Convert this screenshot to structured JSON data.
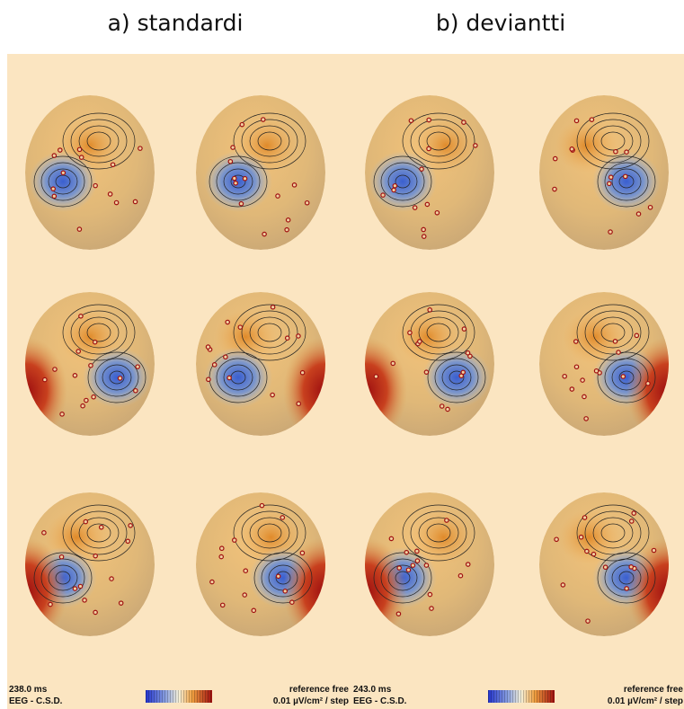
{
  "titles": [
    "a) standardi",
    "b) deviantti"
  ],
  "panels": [
    {
      "time": "238.0 ms",
      "mode": "EEG - C.S.D.",
      "reference": "reference free",
      "scale": "0.01 µV/cm² / step"
    },
    {
      "time": "243.0 ms",
      "mode": "EEG - C.S.D.",
      "reference": "reference free",
      "scale": "0.01 µV/cm² / step"
    }
  ]
}
